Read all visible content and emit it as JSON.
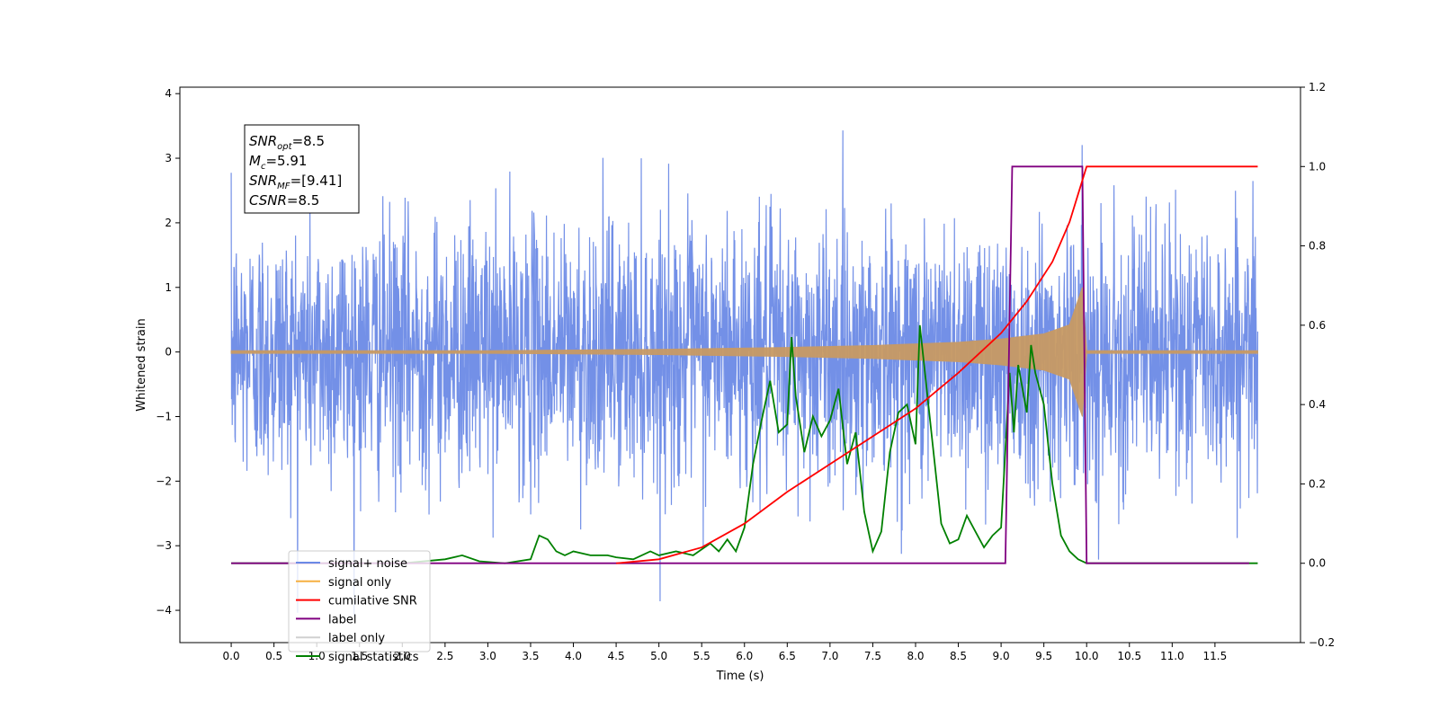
{
  "chart_data": {
    "type": "line",
    "title": "",
    "xlabel": "Time (s)",
    "ylabel": "Whitened strain",
    "y2label": "",
    "xlim": [
      -0.6,
      12.5
    ],
    "ylim": [
      -4.5,
      4.1
    ],
    "y2lim": [
      -0.2,
      1.2
    ],
    "x_ticks": [
      "0.0",
      "0.5",
      "1.0",
      "1.5",
      "2.0",
      "2.5",
      "3.0",
      "3.5",
      "4.0",
      "4.5",
      "5.0",
      "5.5",
      "6.0",
      "6.5",
      "7.0",
      "7.5",
      "8.0",
      "8.5",
      "9.0",
      "9.5",
      "10.0",
      "10.5",
      "11.0",
      "11.5"
    ],
    "y_ticks": [
      "−4",
      "−3",
      "−2",
      "−1",
      "0",
      "1",
      "2",
      "3",
      "4"
    ],
    "y2_ticks": [
      "−0.2",
      "0.0",
      "0.2",
      "0.4",
      "0.6",
      "0.8",
      "1.0",
      "1.2"
    ],
    "grid": false,
    "legend_position": "lower-left",
    "annotation": {
      "lines": [
        {
          "label": "SNR",
          "sub": "opt",
          "value": "=8.5"
        },
        {
          "label": "M",
          "sub": "c",
          "value": "=5.91"
        },
        {
          "label": "SNR",
          "sub": "MF",
          "value": "=[9.41]"
        },
        {
          "label": "CSNR",
          "sub": "",
          "value": "=8.5"
        }
      ]
    },
    "legend": [
      {
        "name": "signal+ noise",
        "color": "#6b8ae6"
      },
      {
        "name": "signal only",
        "color": "#f5b041"
      },
      {
        "name": "cumilative SNR",
        "color": "#ff0000"
      },
      {
        "name": "label",
        "color": "#800080"
      },
      {
        "name": "label only",
        "color": "#d0d0d0"
      },
      {
        "name": "signal statistics",
        "color": "#008000"
      }
    ],
    "series": [
      {
        "name": "signal+ noise",
        "axis": "left",
        "color": "#6b8ae6",
        "description_range": {
          "x": [
            0.0,
            12.0
          ],
          "y": [
            -4.1,
            3.7
          ]
        }
      },
      {
        "name": "signal only",
        "axis": "left",
        "color": "#c89a64",
        "envelope": {
          "x": [
            0.0,
            3.0,
            5.0,
            6.5,
            7.5,
            8.5,
            9.0,
            9.5,
            9.8,
            9.95,
            10.0,
            12.0
          ],
          "y": [
            0.02,
            0.02,
            0.04,
            0.07,
            0.1,
            0.15,
            0.2,
            0.28,
            0.42,
            1.0,
            0.02,
            0.02
          ]
        }
      },
      {
        "name": "cumilative SNR",
        "axis": "right",
        "color": "#ff0000",
        "x": [
          4.5,
          5.0,
          5.5,
          6.0,
          6.5,
          7.0,
          7.5,
          8.0,
          8.5,
          9.0,
          9.3,
          9.6,
          9.8,
          9.9,
          10.0,
          12.0
        ],
        "values": [
          0.0,
          0.01,
          0.04,
          0.1,
          0.18,
          0.25,
          0.32,
          0.39,
          0.48,
          0.58,
          0.66,
          0.76,
          0.86,
          0.93,
          1.0,
          1.0
        ]
      },
      {
        "name": "label",
        "axis": "right",
        "color": "#800080",
        "x": [
          0.0,
          2.2,
          9.05,
          9.13,
          9.95,
          10.0,
          11.9
        ],
        "values": [
          0.0,
          0.0,
          0.0,
          1.0,
          1.0,
          0.0,
          0.0
        ]
      },
      {
        "name": "signal statistics",
        "axis": "right",
        "color": "#008000",
        "x": [
          0.0,
          2.0,
          2.5,
          2.7,
          2.9,
          3.2,
          3.5,
          3.6,
          3.7,
          3.8,
          3.9,
          4.0,
          4.2,
          4.4,
          4.5,
          4.7,
          4.9,
          5.0,
          5.2,
          5.4,
          5.6,
          5.7,
          5.8,
          5.9,
          6.0,
          6.1,
          6.2,
          6.3,
          6.4,
          6.5,
          6.55,
          6.6,
          6.7,
          6.8,
          6.9,
          7.0,
          7.1,
          7.2,
          7.3,
          7.4,
          7.5,
          7.6,
          7.7,
          7.8,
          7.9,
          8.0,
          8.05,
          8.1,
          8.2,
          8.3,
          8.4,
          8.5,
          8.6,
          8.7,
          8.8,
          8.9,
          9.0,
          9.1,
          9.15,
          9.2,
          9.3,
          9.35,
          9.4,
          9.5,
          9.6,
          9.7,
          9.8,
          9.9,
          10.0,
          10.1,
          12.0
        ],
        "values": [
          0.0,
          0.0,
          0.01,
          0.02,
          0.005,
          0.0,
          0.01,
          0.07,
          0.06,
          0.03,
          0.02,
          0.03,
          0.02,
          0.02,
          0.015,
          0.01,
          0.03,
          0.02,
          0.03,
          0.02,
          0.05,
          0.03,
          0.06,
          0.03,
          0.09,
          0.25,
          0.36,
          0.46,
          0.33,
          0.35,
          0.57,
          0.42,
          0.28,
          0.37,
          0.32,
          0.36,
          0.44,
          0.25,
          0.33,
          0.13,
          0.03,
          0.08,
          0.28,
          0.38,
          0.4,
          0.3,
          0.6,
          0.5,
          0.3,
          0.1,
          0.05,
          0.06,
          0.12,
          0.08,
          0.04,
          0.07,
          0.09,
          0.48,
          0.33,
          0.5,
          0.38,
          0.55,
          0.48,
          0.4,
          0.2,
          0.07,
          0.03,
          0.01,
          0.0,
          0.0,
          0.0
        ]
      }
    ]
  }
}
